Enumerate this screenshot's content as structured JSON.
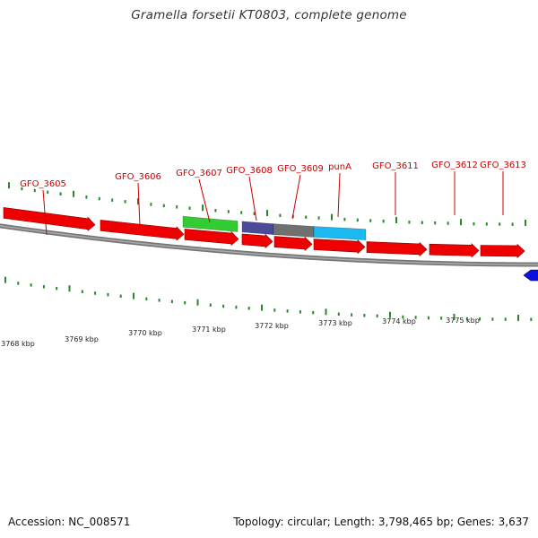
{
  "title": "Gramella forsetii KT0803, complete genome",
  "footer": {
    "accession": "Accession: NC_008571",
    "summary": "Topology: circular; Length: 3,798,465 bp; Genes: 3,637"
  },
  "colors": {
    "forward_gene": "#ee0000",
    "reverse_gene": "#1010dd",
    "backbone": "#888888",
    "tick": "#2a8a2a",
    "label": "#cc0000",
    "feature_green": "#33cc33",
    "feature_purple": "#4b4b99",
    "feature_grey": "#707070",
    "feature_cyan": "#1cb8f0"
  },
  "gene_labels": [
    "GFO_3605",
    "GFO_3606",
    "GFO_3607",
    "GFO_3608",
    "GFO_3609",
    "punA",
    "GFO_3611",
    "GFO_3612",
    "GFO_3613"
  ],
  "kbp_labels": [
    "3768 kbp",
    "3769 kbp",
    "3770 kbp",
    "3771 kbp",
    "3772 kbp",
    "3773 kbp",
    "3774 kbp",
    "3775 kbp"
  ]
}
